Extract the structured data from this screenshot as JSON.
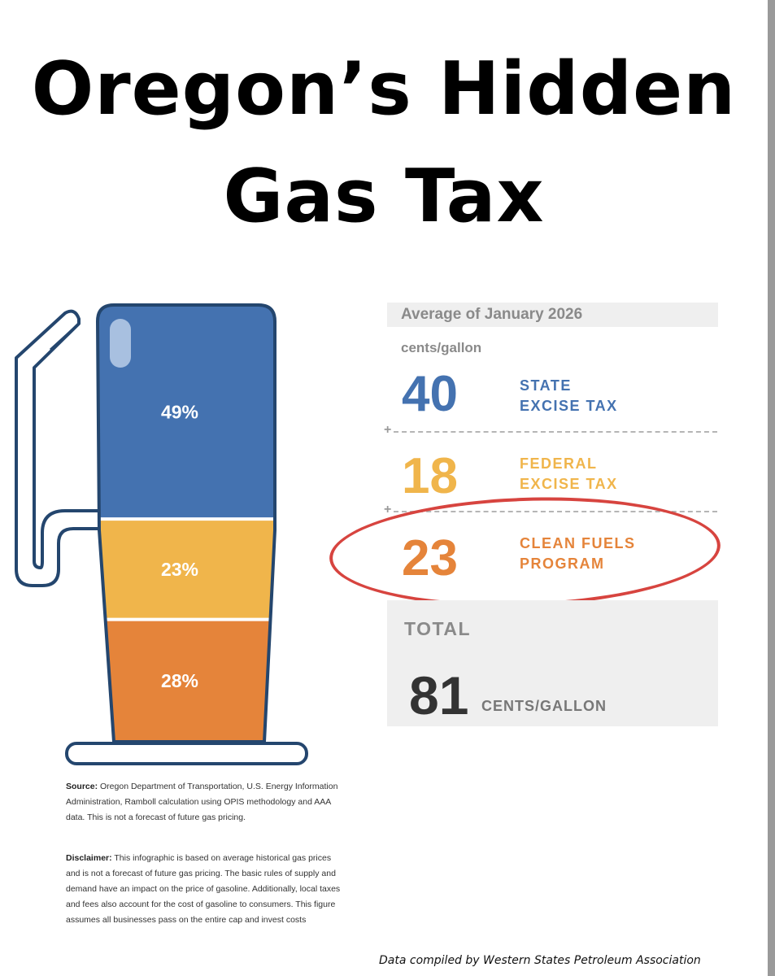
{
  "title_line1": "Oregon’s Hidden",
  "title_line2": "Gas Tax",
  "colors": {
    "state": "#4472b0",
    "federal": "#f0b54b",
    "clean_fuels": "#e5843a",
    "outline": "#24466e",
    "highlight_circle": "#d7443f"
  },
  "chart_data": {
    "type": "bar",
    "stacked": true,
    "categories": [
      "State Excise Tax",
      "Federal Excise Tax",
      "Clean Fuels Program"
    ],
    "percent_labels": [
      "49%",
      "23%",
      "28%"
    ],
    "values": [
      49,
      23,
      28
    ]
  },
  "panel": {
    "header": "Average of January 2026",
    "units": "cents/gallon",
    "rows": [
      {
        "value": "40",
        "label_line1": "STATE",
        "label_line2": "EXCISE TAX"
      },
      {
        "value": "18",
        "label_line1": "FEDERAL",
        "label_line2": "EXCISE TAX"
      },
      {
        "value": "23",
        "label_line1": "CLEAN FUELS",
        "label_line2": "PROGRAM"
      }
    ],
    "plus": "+",
    "total_label": "TOTAL",
    "total_value": "81",
    "total_unit": "CENTS/GALLON"
  },
  "notes": {
    "source_label": "Source:",
    "source_text": " Oregon Department of Transportation, U.S. Energy Information Administration, Ramboll calculation using OPIS methodology and AAA data. This is not a forecast of future gas pricing.",
    "disclaimer_label": "Disclaimer:",
    "disclaimer_text": " This infographic is based on average historical gas prices and is not a forecast of future gas pricing. The basic rules of supply and demand have an impact on the price of gasoline. Additionally, local taxes and fees also account for the cost of gasoline to consumers. This figure assumes all businesses pass on the entire cap and invest costs"
  },
  "footer": "Data compiled by Western States Petroleum Association"
}
